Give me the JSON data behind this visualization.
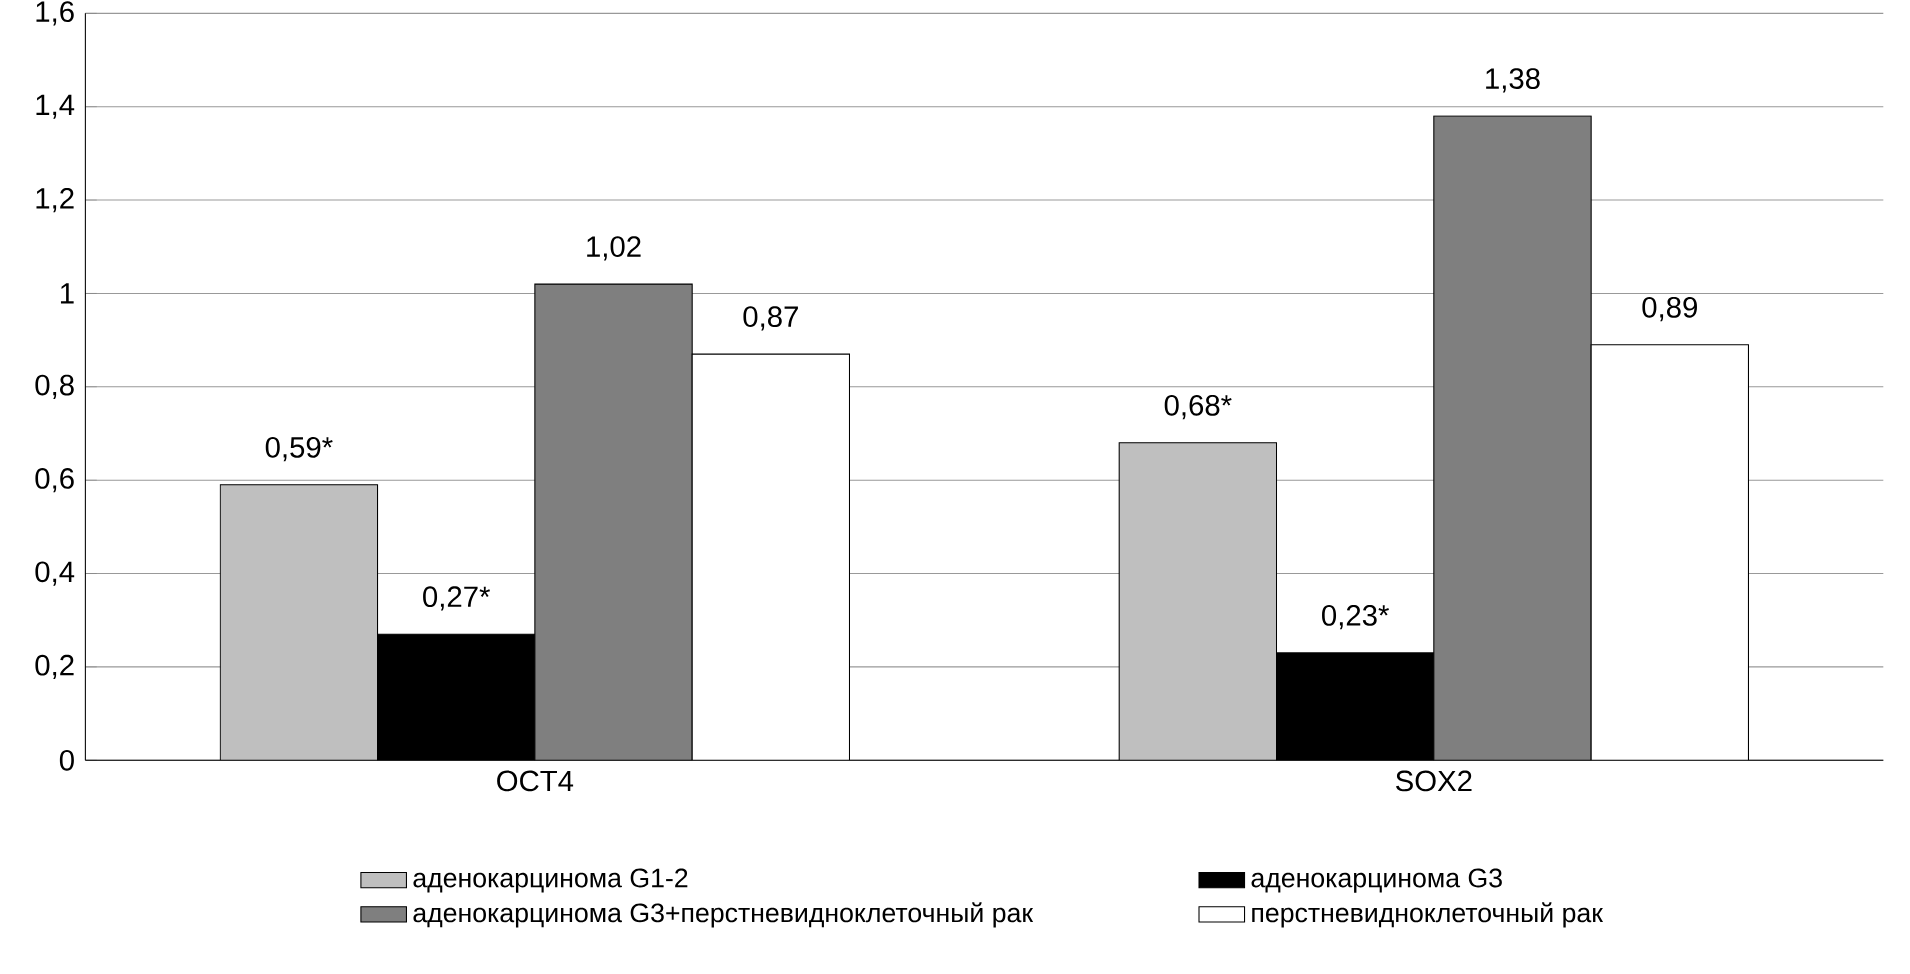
{
  "chart_data": {
    "type": "bar",
    "categories": [
      "OCT4",
      "SOX2"
    ],
    "series": [
      {
        "name": "аденокарцинома G1-2",
        "color": "#bfbfbf",
        "values": [
          0.59,
          0.68
        ],
        "value_labels": [
          "0,59*",
          "0,68*"
        ]
      },
      {
        "name": "аденокарцинома G3",
        "color": "#000000",
        "values": [
          0.27,
          0.23
        ],
        "value_labels": [
          "0,27*",
          "0,23*"
        ]
      },
      {
        "name": "аденокарцинома G3+перстневидноклеточный рак",
        "color": "#7f7f7f",
        "values": [
          1.02,
          1.38
        ],
        "value_labels": [
          "1,02",
          "1,38"
        ]
      },
      {
        "name": "перстневидноклеточный рак",
        "color": "#ffffff",
        "values": [
          0.87,
          0.89
        ],
        "value_labels": [
          "0,87",
          "0,89"
        ]
      }
    ],
    "ylim": [
      0,
      1.6
    ],
    "yticks": [
      0,
      {
        "value": 0.2,
        "label": "0,2"
      },
      {
        "value": 0.4,
        "label": "0,4"
      },
      {
        "value": 0.6,
        "label": "0,6"
      },
      {
        "value": 0.8,
        "label": "0,8"
      },
      1,
      {
        "value": 1.2,
        "label": "1,2"
      },
      {
        "value": 1.4,
        "label": "1,4"
      },
      {
        "value": 1.6,
        "label": "1,6"
      }
    ],
    "grid": "y",
    "legend": "bottom"
  }
}
